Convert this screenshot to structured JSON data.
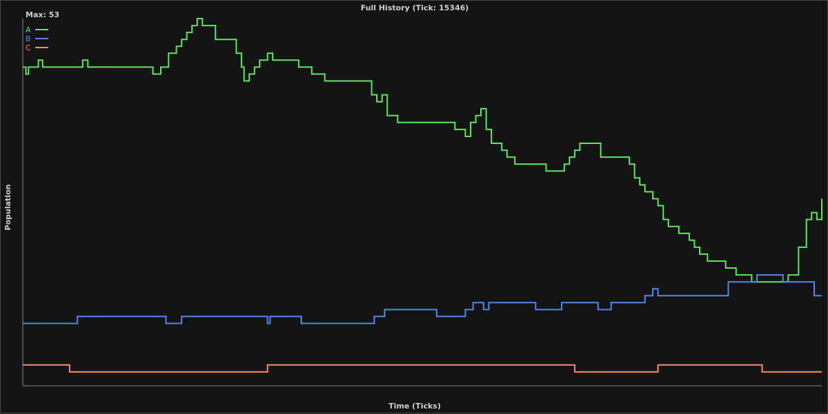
{
  "chart_data": {
    "type": "line",
    "title": "Full History (Tick: 15346)",
    "xlabel": "Time (Ticks)",
    "ylabel": "Population",
    "max_label": "Max: 53",
    "ylim": [
      0,
      53
    ],
    "xlim": [
      0,
      15346
    ],
    "grid": false,
    "legend_position": "top-left",
    "series": [
      {
        "name": "A",
        "color": "#5ee85e",
        "points": [
          [
            0,
            46
          ],
          [
            60,
            45
          ],
          [
            110,
            46
          ],
          [
            250,
            46
          ],
          [
            300,
            47
          ],
          [
            380,
            46
          ],
          [
            470,
            46
          ],
          [
            1000,
            46
          ],
          [
            1100,
            46
          ],
          [
            1150,
            47
          ],
          [
            1250,
            46
          ],
          [
            2400,
            46
          ],
          [
            2500,
            45
          ],
          [
            2650,
            46
          ],
          [
            2800,
            48
          ],
          [
            2950,
            49
          ],
          [
            3050,
            50
          ],
          [
            3150,
            51
          ],
          [
            3250,
            52
          ],
          [
            3350,
            53
          ],
          [
            3450,
            52
          ],
          [
            3650,
            52
          ],
          [
            3700,
            50
          ],
          [
            4000,
            50
          ],
          [
            4100,
            48
          ],
          [
            4200,
            46
          ],
          [
            4250,
            44
          ],
          [
            4350,
            45
          ],
          [
            4450,
            46
          ],
          [
            4550,
            47
          ],
          [
            4700,
            48
          ],
          [
            4800,
            47
          ],
          [
            5250,
            47
          ],
          [
            5300,
            46
          ],
          [
            5450,
            46
          ],
          [
            5550,
            45
          ],
          [
            5800,
            44
          ],
          [
            6600,
            44
          ],
          [
            6700,
            42
          ],
          [
            6800,
            41
          ],
          [
            6900,
            42
          ],
          [
            7000,
            39
          ],
          [
            7200,
            38
          ],
          [
            7600,
            38
          ],
          [
            8200,
            38
          ],
          [
            8300,
            37
          ],
          [
            8500,
            36
          ],
          [
            8600,
            38
          ],
          [
            8700,
            39
          ],
          [
            8800,
            40
          ],
          [
            8900,
            37
          ],
          [
            9000,
            35
          ],
          [
            9200,
            34
          ],
          [
            9300,
            33
          ],
          [
            9450,
            32
          ],
          [
            9600,
            32
          ],
          [
            10050,
            31
          ],
          [
            10200,
            31
          ],
          [
            10400,
            32
          ],
          [
            10500,
            33
          ],
          [
            10600,
            34
          ],
          [
            10700,
            35
          ],
          [
            11000,
            35
          ],
          [
            11100,
            33
          ],
          [
            11400,
            33
          ],
          [
            11500,
            33
          ],
          [
            11650,
            32
          ],
          [
            11750,
            30
          ],
          [
            11850,
            29
          ],
          [
            11950,
            28
          ],
          [
            12100,
            27
          ],
          [
            12200,
            26
          ],
          [
            12300,
            24
          ],
          [
            12400,
            23
          ],
          [
            12600,
            22
          ],
          [
            12800,
            21
          ],
          [
            12900,
            20
          ],
          [
            13000,
            19
          ],
          [
            13150,
            18
          ],
          [
            13400,
            18
          ],
          [
            13500,
            17
          ],
          [
            13700,
            16
          ],
          [
            13800,
            16
          ],
          [
            14000,
            15
          ],
          [
            14250,
            15
          ],
          [
            14500,
            15
          ],
          [
            14600,
            15
          ],
          [
            14700,
            16
          ],
          [
            14800,
            16
          ],
          [
            14900,
            20
          ],
          [
            15050,
            24
          ],
          [
            15150,
            25
          ],
          [
            15250,
            24
          ],
          [
            15346,
            27
          ]
        ]
      },
      {
        "name": "B",
        "color": "#5588ee",
        "points": [
          [
            0,
            9
          ],
          [
            1000,
            9
          ],
          [
            1050,
            10
          ],
          [
            2700,
            10
          ],
          [
            2750,
            9
          ],
          [
            3000,
            9
          ],
          [
            3050,
            10
          ],
          [
            4650,
            10
          ],
          [
            4700,
            9
          ],
          [
            4750,
            10
          ],
          [
            5300,
            10
          ],
          [
            5350,
            9
          ],
          [
            6700,
            9
          ],
          [
            6750,
            10
          ],
          [
            6950,
            11
          ],
          [
            7900,
            11
          ],
          [
            7950,
            10
          ],
          [
            8450,
            10
          ],
          [
            8500,
            11
          ],
          [
            8650,
            12
          ],
          [
            8850,
            11
          ],
          [
            8950,
            12
          ],
          [
            9800,
            12
          ],
          [
            9850,
            11
          ],
          [
            10300,
            11
          ],
          [
            10350,
            12
          ],
          [
            11000,
            12
          ],
          [
            11050,
            11
          ],
          [
            11250,
            11
          ],
          [
            11300,
            12
          ],
          [
            11900,
            12
          ],
          [
            11950,
            13
          ],
          [
            12100,
            14
          ],
          [
            12200,
            13
          ],
          [
            13400,
            13
          ],
          [
            13550,
            15
          ],
          [
            14050,
            15
          ],
          [
            14100,
            16
          ],
          [
            14550,
            16
          ],
          [
            14600,
            15
          ],
          [
            15150,
            15
          ],
          [
            15200,
            13
          ],
          [
            15346,
            13
          ]
        ]
      },
      {
        "name": "C",
        "color": "#ff8c66",
        "points": [
          [
            0,
            3
          ],
          [
            880,
            3
          ],
          [
            900,
            2
          ],
          [
            4650,
            2
          ],
          [
            4700,
            3
          ],
          [
            10550,
            3
          ],
          [
            10600,
            2
          ],
          [
            12150,
            2
          ],
          [
            12200,
            3
          ],
          [
            14150,
            3
          ],
          [
            14200,
            2
          ],
          [
            15346,
            2
          ]
        ]
      }
    ]
  }
}
